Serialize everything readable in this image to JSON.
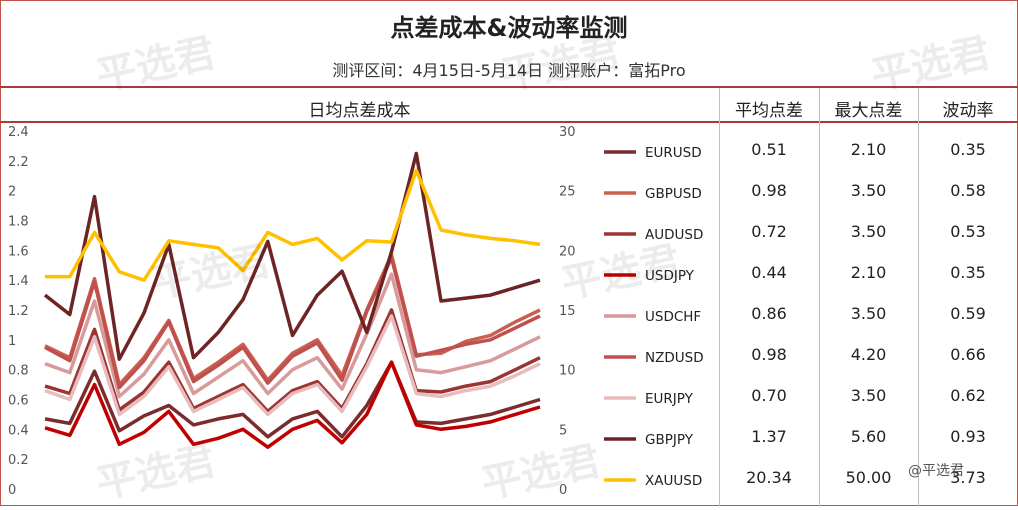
{
  "header": {
    "title": "点差成本&波动率监测",
    "subtitle": "测评区间：4月15日-5月14日  测评账户：富拓Pro"
  },
  "columns": {
    "chart": "日均点差成本",
    "avg": "平均点差",
    "max": "最大点差",
    "vol": "波动率"
  },
  "watermark": "平选君",
  "credit": "@平选君",
  "rows": [
    {
      "name": "EURUSD",
      "avg": "0.51",
      "max": "2.10",
      "vol": "0.35",
      "color": "#7b2c2c"
    },
    {
      "name": "GBPUSD",
      "avg": "0.98",
      "max": "3.50",
      "vol": "0.58",
      "color": "#c8604f"
    },
    {
      "name": "AUDUSD",
      "avg": "0.72",
      "max": "3.50",
      "vol": "0.53",
      "color": "#9a3533"
    },
    {
      "name": "USDJPY",
      "avg": "0.44",
      "max": "2.10",
      "vol": "0.35",
      "color": "#c00000"
    },
    {
      "name": "USDCHF",
      "avg": "0.86",
      "max": "3.50",
      "vol": "0.59",
      "color": "#d89a9a"
    },
    {
      "name": "NZDUSD",
      "avg": "0.98",
      "max": "4.20",
      "vol": "0.66",
      "color": "#c0504d"
    },
    {
      "name": "EURJPY",
      "avg": "0.70",
      "max": "3.50",
      "vol": "0.62",
      "color": "#e8bcbc"
    },
    {
      "name": "GBPJPY",
      "avg": "1.37",
      "max": "5.60",
      "vol": "0.93",
      "color": "#6e2424"
    },
    {
      "name": "XAUUSD",
      "avg": "20.34",
      "max": "50.00",
      "vol": "3.73",
      "color": "#ffc000"
    }
  ],
  "chart_data": {
    "type": "line",
    "x": [
      1,
      2,
      3,
      4,
      5,
      6,
      7,
      8,
      9,
      10,
      11,
      12,
      13,
      14,
      15,
      16,
      17,
      18,
      19,
      20,
      21
    ],
    "yleft": {
      "ticks": [
        "0",
        "0.2",
        "0.4",
        "0.6",
        "0.8",
        "1",
        "1.2",
        "1.4",
        "1.6",
        "1.8",
        "2",
        "2.2",
        "2.4"
      ],
      "ylim": [
        0,
        2.4
      ]
    },
    "yright": {
      "ticks": [
        "0",
        "5",
        "10",
        "15",
        "20",
        "25",
        "30"
      ],
      "ylim": [
        0,
        30
      ]
    },
    "series": [
      {
        "name": "EURUSD",
        "axis": "left",
        "values": [
          0.47,
          0.44,
          0.79,
          0.39,
          0.49,
          0.56,
          0.43,
          0.47,
          0.5,
          0.35,
          0.47,
          0.52,
          0.35,
          0.56,
          0.85,
          0.45,
          0.44,
          0.47,
          0.5,
          0.55,
          0.6
        ]
      },
      {
        "name": "GBPUSD",
        "axis": "left",
        "values": [
          0.96,
          0.88,
          1.41,
          0.7,
          0.88,
          1.13,
          0.74,
          0.85,
          0.97,
          0.73,
          0.91,
          1.0,
          0.76,
          1.2,
          1.57,
          0.9,
          0.91,
          0.99,
          1.03,
          1.12,
          1.2
        ]
      },
      {
        "name": "AUDUSD",
        "axis": "left",
        "values": [
          0.69,
          0.64,
          1.07,
          0.53,
          0.65,
          0.85,
          0.54,
          0.62,
          0.7,
          0.52,
          0.66,
          0.72,
          0.54,
          0.84,
          1.2,
          0.66,
          0.65,
          0.69,
          0.72,
          0.8,
          0.88
        ]
      },
      {
        "name": "USDJPY",
        "axis": "left",
        "values": [
          0.41,
          0.36,
          0.7,
          0.3,
          0.38,
          0.52,
          0.3,
          0.34,
          0.4,
          0.28,
          0.4,
          0.46,
          0.31,
          0.5,
          0.85,
          0.43,
          0.4,
          0.42,
          0.45,
          0.5,
          0.55
        ]
      },
      {
        "name": "USDCHF",
        "axis": "left",
        "values": [
          0.84,
          0.78,
          1.26,
          0.62,
          0.77,
          1.0,
          0.64,
          0.75,
          0.86,
          0.64,
          0.8,
          0.88,
          0.67,
          1.04,
          1.44,
          0.8,
          0.78,
          0.82,
          0.86,
          0.94,
          1.02
        ]
      },
      {
        "name": "NZDUSD",
        "axis": "left",
        "values": [
          0.95,
          0.86,
          1.39,
          0.68,
          0.86,
          1.12,
          0.72,
          0.83,
          0.95,
          0.71,
          0.89,
          0.98,
          0.73,
          1.19,
          1.55,
          0.89,
          0.93,
          0.97,
          1.0,
          1.08,
          1.16
        ]
      },
      {
        "name": "EURJPY",
        "axis": "left",
        "values": [
          0.66,
          0.6,
          1.02,
          0.5,
          0.62,
          0.82,
          0.52,
          0.6,
          0.68,
          0.5,
          0.64,
          0.7,
          0.52,
          0.82,
          1.16,
          0.64,
          0.62,
          0.66,
          0.69,
          0.76,
          0.84
        ]
      },
      {
        "name": "GBPJPY",
        "axis": "left",
        "values": [
          1.3,
          1.17,
          1.96,
          0.87,
          1.18,
          1.64,
          0.88,
          1.05,
          1.27,
          1.66,
          1.03,
          1.3,
          1.46,
          1.05,
          1.59,
          2.25,
          1.26,
          1.28,
          1.3,
          1.35,
          1.4
        ]
      },
      {
        "name": "XAUUSD",
        "axis": "right",
        "values": [
          17.8,
          17.8,
          21.5,
          18.2,
          17.5,
          20.8,
          20.5,
          20.2,
          18.3,
          21.5,
          20.5,
          21.0,
          19.2,
          20.8,
          20.7,
          26.7,
          21.7,
          21.3,
          21.0,
          20.8,
          20.5
        ]
      }
    ]
  }
}
